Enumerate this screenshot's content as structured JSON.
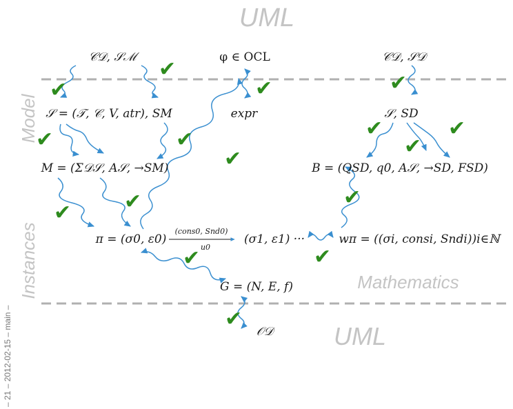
{
  "labels": {
    "uml_top": "UML",
    "uml_bottom": "UML",
    "mathematics": "Mathematics",
    "model": "Model",
    "instances": "Instances"
  },
  "footer": "– 21 – 2012-02-15 – main –",
  "nodes": {
    "cd_sm": "𝒞𝒟, 𝒮ℳ",
    "phi_ocl": "φ ∈ OCL",
    "cd_sd": "𝒞𝒟, 𝒮𝒟",
    "signature": "𝒮 = (𝒯, 𝒞, V, atr), SM",
    "expr": "expr",
    "s_sd": "𝒮, SD",
    "m_tuple": "M = (Σ𝒟𝒮, A𝒮, →SM)",
    "b_tuple": "B = (QSD, q0, A𝒮, →SD, FSD)",
    "pi_run": "π = (σ0, ε0)",
    "pi_next": "(σ1, ε1) ···",
    "transition_label": "(cons0, Snd0)",
    "transition_sub": "u0",
    "w_pi": "wπ = ((σi, consi, Sndi))i∈ℕ",
    "g_graph": "G = (N, E, f)",
    "od": "𝒪𝒟"
  },
  "check_glyph": "✔",
  "colors": {
    "check": "#2e8b1e",
    "arrow": "#3a8fd0",
    "dashed_line": "#b0b0b0",
    "label_gray": "#c4c4c4"
  }
}
